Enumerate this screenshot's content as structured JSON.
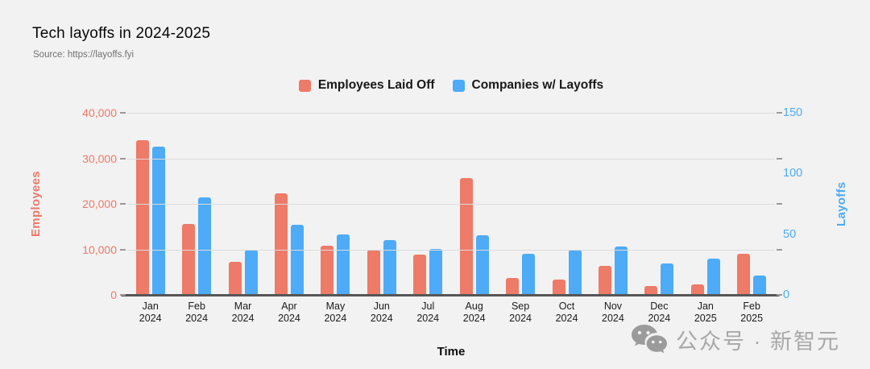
{
  "page": {
    "title": "Tech layoffs in 2024-2025",
    "source": "Source: https://layoffs.fyi"
  },
  "watermark": {
    "icon": "wechat-icon",
    "text": "公众号 · 新智元"
  },
  "chart_data": {
    "type": "bar",
    "title": "Tech layoffs in 2024-2025",
    "xlabel": "Time",
    "grid": true,
    "legend_position": "top-center",
    "background_color": "#f2f2f2",
    "categories": [
      "Jan 2024",
      "Feb 2024",
      "Mar 2024",
      "Apr 2024",
      "May 2024",
      "Jun 2024",
      "Jul 2024",
      "Aug 2024",
      "Sep 2024",
      "Oct 2024",
      "Nov 2024",
      "Dec 2024",
      "Jan 2025",
      "Feb 2025"
    ],
    "series": [
      {
        "name": "Employees Laid Off",
        "axis": "left",
        "color": "#ee7a68",
        "values": [
          34000,
          15500,
          7200,
          22300,
          10800,
          10000,
          8800,
          25600,
          3700,
          3400,
          6300,
          2000,
          2300,
          9000
        ]
      },
      {
        "name": "Companies w/ Layoffs",
        "axis": "right",
        "color": "#4dabf7",
        "values": [
          122,
          80,
          37,
          58,
          50,
          45,
          38,
          49,
          34,
          37,
          40,
          26,
          30,
          16
        ]
      }
    ],
    "left_axis": {
      "title": "Employees",
      "color": "#f07867",
      "min": 0,
      "max": 40000,
      "ticks": [
        "40,000",
        "30,000",
        "20,000",
        "10,000",
        "0"
      ]
    },
    "right_axis": {
      "title": "Layoffs",
      "color": "#4dabf7",
      "min": 0,
      "max": 150,
      "ticks": [
        "150",
        "100",
        "50",
        "0"
      ]
    }
  }
}
